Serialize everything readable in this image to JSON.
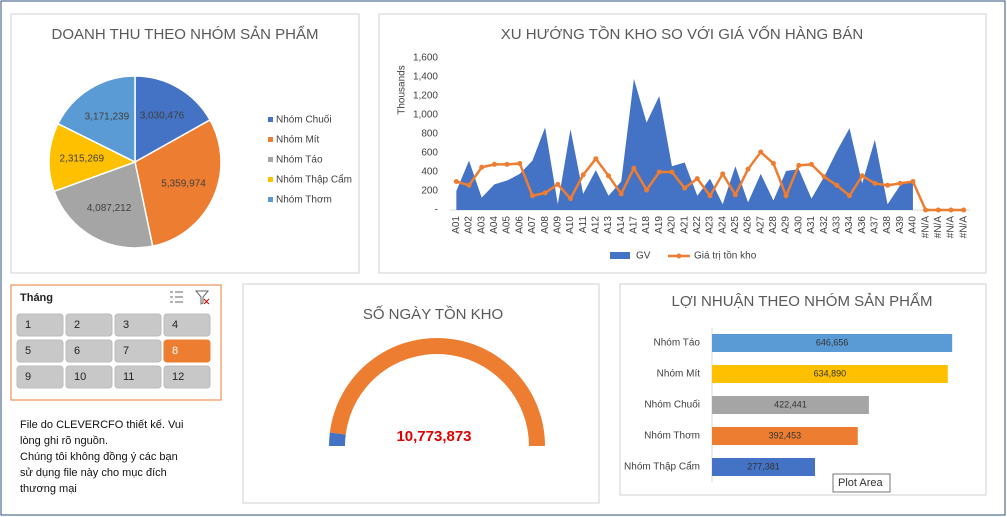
{
  "chart_data": [
    {
      "type": "pie",
      "title": "DOANH THU THEO NHÓM SẢN PHẨM",
      "categories": [
        "Nhóm Chuối",
        "Nhóm Mít",
        "Nhóm Táo",
        "Nhóm Thập Cẩm",
        "Nhóm Thơm"
      ],
      "values": [
        3030476,
        5359974,
        4087212,
        2315269,
        3171239
      ],
      "value_labels": [
        "3,030,476",
        "5,359,974",
        "4,087,212",
        "2,315,269",
        "3,171,239"
      ],
      "colors": [
        "#4472c4",
        "#ed7d31",
        "#a5a5a5",
        "#ffc000",
        "#5b9bd5"
      ],
      "legend": "right"
    },
    {
      "type": "area-line",
      "title": "XU HƯỚNG TỒN KHO SO VỚI GIÁ VỐN HÀNG BÁN",
      "y_label": "Thousands",
      "categories": [
        "A01",
        "A02",
        "A03",
        "A04",
        "A05",
        "A06",
        "A07",
        "A08",
        "A09",
        "A10",
        "A11",
        "A12",
        "A13",
        "A14",
        "A17",
        "A18",
        "A19",
        "A20",
        "A21",
        "A22",
        "A23",
        "A24",
        "A25",
        "A26",
        "A27",
        "A28",
        "A29",
        "A30",
        "A31",
        "A32",
        "A33",
        "A34",
        "A36",
        "A37",
        "A38",
        "A39",
        "A40",
        "#N/A",
        "#N/A",
        "#N/A",
        "#N/A"
      ],
      "series": [
        {
          "name": "GV",
          "kind": "area",
          "color": "#4472c4",
          "values": [
            200,
            520,
            130,
            270,
            310,
            380,
            520,
            870,
            60,
            850,
            170,
            420,
            150,
            300,
            1380,
            920,
            1200,
            460,
            500,
            150,
            330,
            60,
            460,
            80,
            380,
            100,
            410,
            430,
            120,
            350,
            620,
            860,
            280,
            740,
            60,
            260,
            320,
            null,
            null,
            null,
            null
          ]
        },
        {
          "name": "Giá trị tồn kho",
          "kind": "line",
          "color": "#ed7d31",
          "values": [
            300,
            260,
            450,
            480,
            480,
            490,
            150,
            180,
            270,
            120,
            370,
            540,
            360,
            170,
            440,
            210,
            400,
            400,
            230,
            330,
            150,
            380,
            160,
            430,
            610,
            490,
            150,
            470,
            480,
            350,
            260,
            150,
            360,
            280,
            260,
            280,
            300,
            0,
            0,
            0,
            0
          ]
        }
      ],
      "ylim": [
        0,
        1600
      ],
      "yticks": [
        {
          "value": 0,
          "label": "-"
        },
        200,
        400,
        600,
        800,
        {
          "value": 1000,
          "label": "1,000"
        },
        {
          "value": 1200,
          "label": "1,200"
        },
        {
          "value": 1400,
          "label": "1,400"
        },
        {
          "value": 1600,
          "label": "1,600"
        }
      ],
      "grid": false,
      "legend": "bottom"
    },
    {
      "type": "gauge",
      "title": "SỐ NGÀY TỒN KHO",
      "values": [
        4,
        96
      ],
      "colors": [
        "#4472c4",
        "#ed7d31"
      ],
      "value": 10773873,
      "value_label": "10,773,873"
    },
    {
      "type": "hbar",
      "title": "LỢI NHUẬN THEO NHÓM SẢN PHẨM",
      "categories": [
        "Nhóm Táo",
        "Nhóm Mít",
        "Nhóm Chuối",
        "Nhóm Thơm",
        "Nhóm Thập Cẩm"
      ],
      "values": [
        646656,
        634890,
        422441,
        392453,
        277381
      ],
      "value_labels": [
        "646,656",
        "634,890",
        "422,441",
        "392,453",
        "277,381"
      ],
      "colors": [
        "#5b9bd5",
        "#ffc000",
        "#a5a5a5",
        "#ed7d31",
        "#4472c4"
      ],
      "xlim": [
        0,
        700000
      ],
      "tooltip": "Plot Area"
    }
  ],
  "slicer": {
    "title": "Tháng",
    "items": [
      "1",
      "2",
      "3",
      "4",
      "5",
      "6",
      "7",
      "8",
      "9",
      "10",
      "11",
      "12"
    ],
    "selected": 7
  },
  "note": {
    "lines": [
      "File do CLEVERCFO thiết kế. Vui",
      "lòng ghi rõ nguồn.",
      "Chúng tôi không đồng ý các bạn",
      "sử dụng file này cho mục đích",
      "thương mại"
    ]
  }
}
